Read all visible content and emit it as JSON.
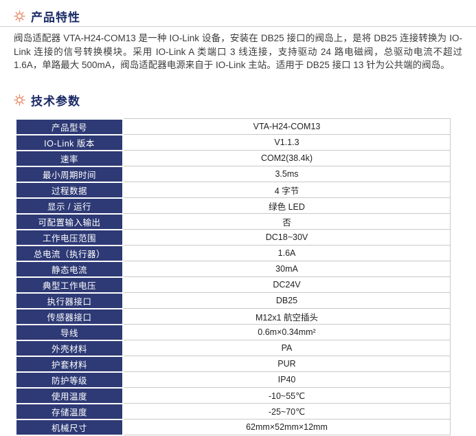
{
  "colors": {
    "accent_navy": "#2e3a75",
    "title_navy": "#1b2a66",
    "icon_orange": "#e8916f",
    "table_border_gray": "#c9c9c9"
  },
  "features": {
    "title": "产品特性",
    "description": "阀岛适配器 VTA-H24-COM13 是一种 IO-Link 设备，安装在 DB25 接口的阀岛上，是将 DB25 连接转换为 IO-Link 连接的信号转换模块。采用 IO-Link A 类端口 3 线连接，支持驱动 24 路电磁阀，总驱动电流不超过 1.6A，单路最大 500mA，阀岛适配器电源来自于 IO-Link 主站。适用于 DB25 接口 13 针为公共端的阀岛。"
  },
  "specs": {
    "title": "技术参数",
    "rows": [
      {
        "label": "产品型号",
        "value": "VTA-H24-COM13"
      },
      {
        "label": "IO-Link 版本",
        "value": "V1.1.3"
      },
      {
        "label": "速率",
        "value": "COM2(38.4k)"
      },
      {
        "label": "最小周期时间",
        "value": "3.5ms"
      },
      {
        "label": "过程数据",
        "value": "4 字节"
      },
      {
        "label": "显示 / 运行",
        "value": "绿色 LED"
      },
      {
        "label": "可配置输入输出",
        "value": "否"
      },
      {
        "label": "工作电压范围",
        "value": "DC18~30V"
      },
      {
        "label": "总电流（执行器）",
        "value": "1.6A"
      },
      {
        "label": "静态电流",
        "value": "30mA"
      },
      {
        "label": "典型工作电压",
        "value": "DC24V"
      },
      {
        "label": "执行器接口",
        "value": "DB25"
      },
      {
        "label": "传感器接口",
        "value": "M12x1 航空插头"
      },
      {
        "label": "导线",
        "value": "0.6m×0.34mm²"
      },
      {
        "label": "外壳材料",
        "value": "PA"
      },
      {
        "label": "护套材料",
        "value": "PUR"
      },
      {
        "label": "防护等级",
        "value": "IP40"
      },
      {
        "label": "使用温度",
        "value": "-10~55℃"
      },
      {
        "label": "存储温度",
        "value": "-25~70℃"
      },
      {
        "label": "机械尺寸",
        "value": "62mm×52mm×12mm"
      }
    ]
  }
}
